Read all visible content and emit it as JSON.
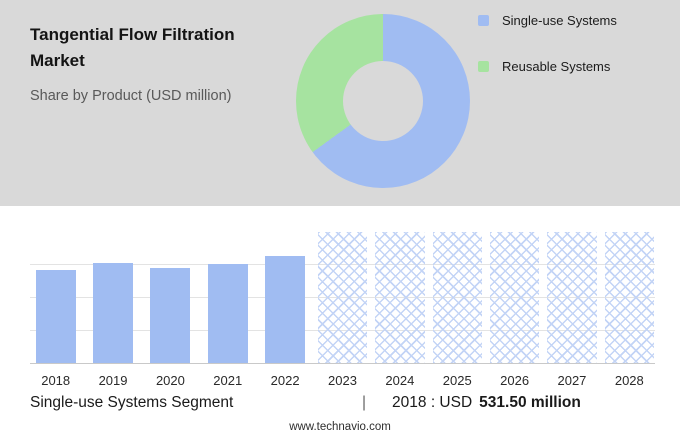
{
  "header": {
    "title": "Tangential Flow Filtration Market",
    "subtitle": "Share by Product (USD million)"
  },
  "legend": {
    "items": [
      {
        "label": "Single-use Systems",
        "color": "#a0bcf2"
      },
      {
        "label": "Reusable Systems",
        "color": "#a6e3a0"
      }
    ]
  },
  "chart_data": [
    {
      "type": "pie",
      "donut": true,
      "title": "Share by Product (USD million)",
      "labels": [
        "Single-use Systems",
        "Reusable Systems"
      ],
      "values": [
        65,
        35
      ],
      "colors": [
        "#a0bcf2",
        "#a6e3a0"
      ],
      "legend_position": "right"
    },
    {
      "type": "bar",
      "title": "Single-use Systems Segment (USD million)",
      "categories": [
        "2018",
        "2019",
        "2020",
        "2021",
        "2022",
        "2023",
        "2024",
        "2025",
        "2026",
        "2027",
        "2028"
      ],
      "series": [
        {
          "name": "Single-use Systems",
          "values": [
            531.5,
            575,
            545,
            565,
            610,
            null,
            null,
            null,
            null,
            null,
            null
          ]
        }
      ],
      "forecast_categories": [
        "2023",
        "2024",
        "2025",
        "2026",
        "2027",
        "2028"
      ],
      "xlabel": "",
      "ylabel": "",
      "ylim": [
        0,
        750
      ],
      "grid": true,
      "bar_color": "#a0bcf2"
    }
  ],
  "footer": {
    "segment_label": "Single-use Systems Segment",
    "separator": "|",
    "year_label": "2018 : USD",
    "value_label": "531.50 million",
    "website": "www.technavio.com"
  }
}
